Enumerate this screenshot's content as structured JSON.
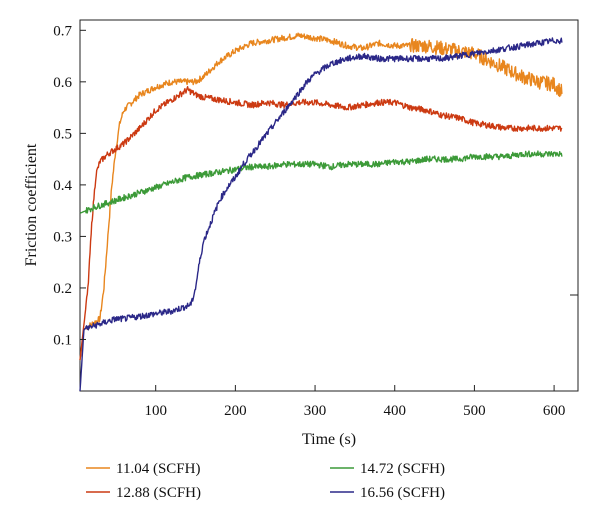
{
  "chart_data": {
    "type": "line",
    "title": "",
    "xlabel": "Time (s)",
    "ylabel": "Friction coefficient",
    "xlim": [
      5,
      630
    ],
    "ylim": [
      0.0,
      0.72
    ],
    "xticks": [
      100,
      200,
      300,
      400,
      500,
      600
    ],
    "xtick_labels": [
      "100",
      "200",
      "300",
      "400",
      "500",
      "600"
    ],
    "yticks": [
      0.1,
      0.2,
      0.3,
      0.4,
      0.5,
      0.6,
      0.7
    ],
    "ytick_labels": [
      "0.1",
      "0.2",
      "0.3",
      "0.4",
      "0.5",
      "0.6",
      "0.7"
    ],
    "grid": false,
    "legend": "bottom",
    "series": [
      {
        "name": "11.04 (SCFH)",
        "color": "#E8861E",
        "x": [
          5,
          10,
          20,
          30,
          35,
          40,
          45,
          50,
          55,
          60,
          70,
          80,
          100,
          120,
          140,
          150,
          160,
          180,
          200,
          220,
          240,
          260,
          280,
          300,
          320,
          340,
          360,
          380,
          400,
          420,
          440,
          460,
          480,
          500,
          520,
          540,
          560,
          580,
          600,
          610
        ],
        "y": [
          0.06,
          0.12,
          0.13,
          0.14,
          0.2,
          0.3,
          0.4,
          0.47,
          0.52,
          0.545,
          0.56,
          0.575,
          0.59,
          0.6,
          0.6,
          0.6,
          0.61,
          0.64,
          0.66,
          0.675,
          0.68,
          0.685,
          0.69,
          0.685,
          0.68,
          0.67,
          0.665,
          0.675,
          0.67,
          0.67,
          0.67,
          0.665,
          0.66,
          0.655,
          0.64,
          0.625,
          0.61,
          0.6,
          0.595,
          0.58
        ]
      },
      {
        "name": "12.88 (SCFH)",
        "color": "#CC3A12",
        "x": [
          5,
          10,
          15,
          20,
          25,
          30,
          40,
          60,
          80,
          100,
          120,
          140,
          150,
          160,
          180,
          200,
          220,
          240,
          260,
          280,
          300,
          320,
          340,
          360,
          380,
          400,
          420,
          440,
          460,
          480,
          500,
          520,
          540,
          560,
          580,
          600,
          610
        ],
        "y": [
          0.06,
          0.13,
          0.2,
          0.33,
          0.42,
          0.445,
          0.46,
          0.48,
          0.51,
          0.545,
          0.565,
          0.585,
          0.575,
          0.57,
          0.565,
          0.56,
          0.555,
          0.56,
          0.555,
          0.56,
          0.56,
          0.555,
          0.55,
          0.555,
          0.56,
          0.56,
          0.55,
          0.545,
          0.535,
          0.53,
          0.52,
          0.515,
          0.51,
          0.51,
          0.51,
          0.51,
          0.51
        ]
      },
      {
        "name": "14.72 (SCFH)",
        "color": "#3C9A38",
        "x": [
          5,
          20,
          40,
          60,
          80,
          100,
          120,
          140,
          160,
          180,
          200,
          220,
          240,
          260,
          280,
          300,
          320,
          340,
          360,
          380,
          400,
          420,
          440,
          460,
          480,
          500,
          520,
          540,
          560,
          580,
          600,
          610
        ],
        "y": [
          0.345,
          0.355,
          0.365,
          0.375,
          0.385,
          0.395,
          0.405,
          0.415,
          0.42,
          0.425,
          0.43,
          0.435,
          0.435,
          0.44,
          0.44,
          0.44,
          0.435,
          0.44,
          0.44,
          0.44,
          0.445,
          0.445,
          0.45,
          0.45,
          0.45,
          0.455,
          0.455,
          0.455,
          0.46,
          0.46,
          0.46,
          0.46
        ]
      },
      {
        "name": "16.56 (SCFH)",
        "color": "#2B2888",
        "x": [
          5,
          10,
          20,
          30,
          40,
          50,
          60,
          80,
          100,
          120,
          140,
          145,
          150,
          155,
          160,
          170,
          180,
          190,
          200,
          210,
          220,
          230,
          240,
          250,
          260,
          270,
          280,
          290,
          300,
          310,
          320,
          340,
          360,
          380,
          400,
          420,
          440,
          460,
          480,
          500,
          520,
          540,
          560,
          580,
          600,
          610
        ],
        "y": [
          0.0,
          0.12,
          0.125,
          0.13,
          0.135,
          0.14,
          0.14,
          0.145,
          0.15,
          0.155,
          0.165,
          0.17,
          0.2,
          0.25,
          0.29,
          0.33,
          0.37,
          0.395,
          0.415,
          0.44,
          0.46,
          0.48,
          0.5,
          0.52,
          0.54,
          0.56,
          0.58,
          0.6,
          0.615,
          0.625,
          0.635,
          0.645,
          0.65,
          0.645,
          0.645,
          0.645,
          0.645,
          0.645,
          0.65,
          0.655,
          0.66,
          0.665,
          0.67,
          0.675,
          0.68,
          0.68
        ]
      }
    ]
  }
}
